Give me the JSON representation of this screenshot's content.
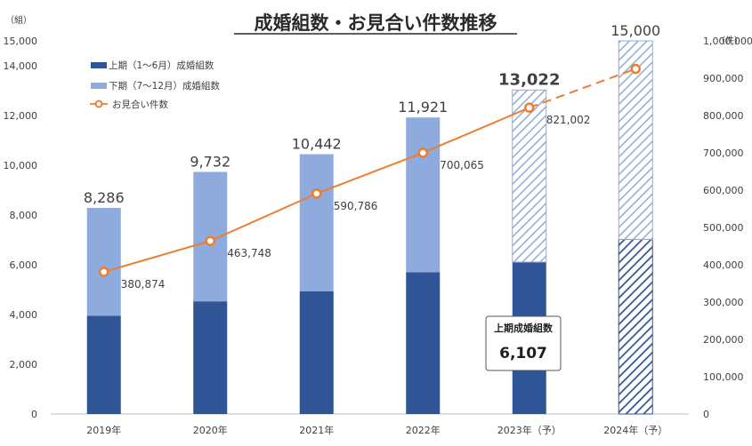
{
  "title": "成婚組数・お見合い件数推移",
  "left_unit": "（組）",
  "right_unit": "（件）",
  "callout": {
    "label": "上期成婚組数",
    "value": "6,107"
  },
  "colors": {
    "first_half": "#2F5597",
    "second_half": "#8FAADC",
    "line": "#ED7D31",
    "axis_text": "#404040"
  },
  "chart_data": {
    "type": "bar",
    "title": "成婚組数・お見合い件数推移",
    "categories": [
      "2019年",
      "2020年",
      "2021年",
      "2022年",
      "2023年（予）",
      "2024年（予）"
    ],
    "series": [
      {
        "name": "上期（1〜6月）成婚組数",
        "values": [
          3950,
          4530,
          4930,
          5700,
          6107,
          7020
        ],
        "axis": "left",
        "kind": "stacked-bar"
      },
      {
        "name": "下期（7〜12月）成婚組数",
        "values": [
          4336,
          5202,
          5512,
          6221,
          6915,
          7980
        ],
        "axis": "left",
        "kind": "stacked-bar"
      },
      {
        "name": "お見合い件数",
        "values": [
          380874,
          463748,
          590786,
          700065,
          821002,
          925000
        ],
        "axis": "right",
        "kind": "line"
      }
    ],
    "totals": [
      8286,
      9732,
      10442,
      11921,
      13022,
      15000
    ],
    "total_labels": [
      "8,286",
      "9,732",
      "10,442",
      "11,921",
      "13,022",
      "15,000"
    ],
    "line_labels": [
      "380,874",
      "463,748",
      "590,786",
      "700,065",
      "821,002",
      ""
    ],
    "forecast_from_index": 4,
    "yleft": {
      "min": 0,
      "max": 15000,
      "step": 2000,
      "ticks": [
        "0",
        "2,000",
        "4,000",
        "6,000",
        "8,000",
        "10,000",
        "12,000",
        "14,000",
        "15,000"
      ]
    },
    "yright": {
      "min": 0,
      "max": 1000000,
      "step": 100000,
      "ticks": [
        "0",
        "100,000",
        "200,000",
        "300,000",
        "400,000",
        "500,000",
        "600,000",
        "700,000",
        "800,000",
        "900,000",
        "1,000,000"
      ]
    },
    "legend_position": "top-left",
    "grid": false
  }
}
